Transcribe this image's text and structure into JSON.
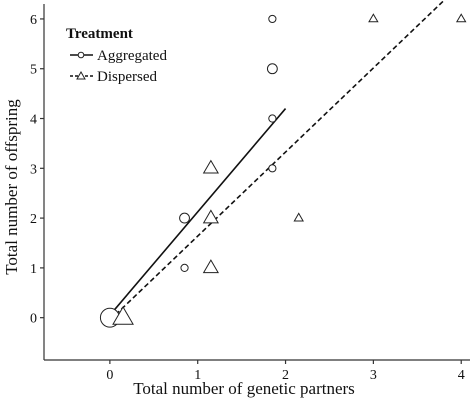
{
  "chart_data": {
    "type": "scatter",
    "title": "",
    "xlabel": "Total number of genetic partners",
    "ylabel": "Total number of offspring",
    "xlim": [
      -0.75,
      4.1
    ],
    "ylim": [
      -0.85,
      6.3
    ],
    "xticks": [
      0,
      1,
      2,
      3,
      4
    ],
    "yticks": [
      0,
      1,
      2,
      3,
      4,
      5,
      6
    ],
    "grid": false,
    "legend": {
      "title": "Treatment",
      "position": "top-left",
      "entries": [
        "Aggregated",
        "Dispersed"
      ]
    },
    "series": [
      {
        "name": "Aggregated",
        "marker": "circle",
        "points": [
          {
            "x": 0,
            "y": 0,
            "count": 8
          },
          {
            "x": 0.85,
            "y": 1,
            "count": 1
          },
          {
            "x": 0.85,
            "y": 2,
            "count": 2
          },
          {
            "x": 1.85,
            "y": 3,
            "count": 1
          },
          {
            "x": 1.85,
            "y": 4,
            "count": 1
          },
          {
            "x": 1.85,
            "y": 5,
            "count": 2
          },
          {
            "x": 1.85,
            "y": 6,
            "count": 1
          }
        ],
        "fit": {
          "line": "solid",
          "x": [
            0,
            2
          ],
          "y": [
            0.05,
            4.2
          ]
        }
      },
      {
        "name": "Dispersed",
        "marker": "triangle",
        "points": [
          {
            "x": 0.15,
            "y": 0,
            "count": 6
          },
          {
            "x": 1.15,
            "y": 1,
            "count": 3
          },
          {
            "x": 1.15,
            "y": 2,
            "count": 3
          },
          {
            "x": 1.15,
            "y": 3,
            "count": 3
          },
          {
            "x": 2.15,
            "y": 2,
            "count": 1
          },
          {
            "x": 3,
            "y": 6,
            "count": 1
          },
          {
            "x": 4,
            "y": 6,
            "count": 1
          }
        ],
        "fit": {
          "line": "dashed",
          "x": [
            0,
            3.85
          ],
          "y": [
            -0.05,
            6.45
          ]
        }
      }
    ]
  }
}
